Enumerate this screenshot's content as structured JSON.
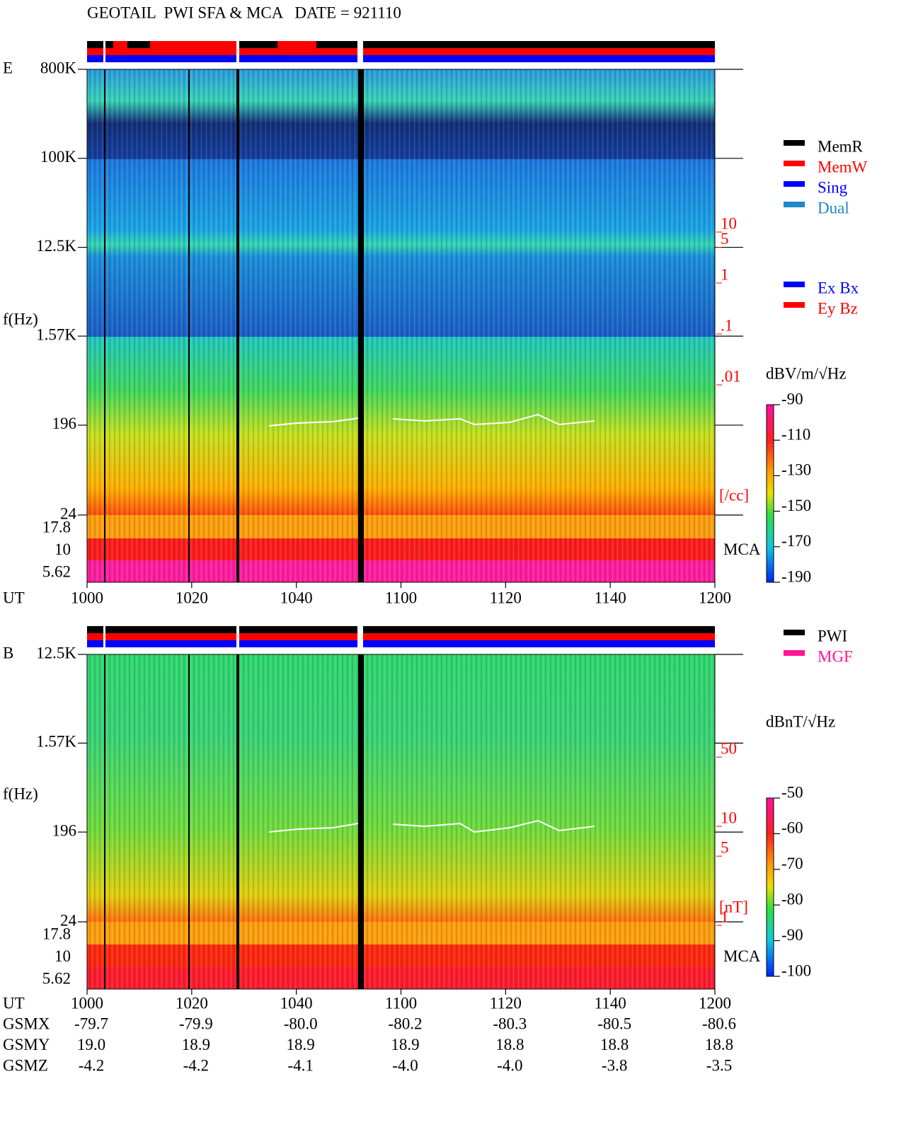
{
  "chart_data": [
    {
      "type": "spectrogram",
      "title": "GEOTAIL  PWI SFA & MCA   DATE = 921110",
      "panel_label": "E",
      "y_label": "f(Hz)",
      "x_label": "UT",
      "categories": [
        "1000",
        "1020",
        "1040",
        "1100",
        "1120",
        "1140",
        "1200"
      ],
      "ylim": [
        24,
        800000
      ],
      "log_y": true,
      "yticks": [
        {
          "value": 800000,
          "label": "800K"
        },
        {
          "value": 100000,
          "label": "100K"
        },
        {
          "value": 12500,
          "label": "12.5K"
        },
        {
          "value": 1570,
          "label": "1.57K"
        },
        196,
        24
      ],
      "mca_label": "MCA",
      "mca_ticks": [
        17.8,
        10,
        5.62
      ],
      "density_ticks": [
        10,
        5,
        1,
        {
          "value": 0.1,
          "label": ".1"
        },
        {
          "value": 0.01,
          "label": ".01"
        }
      ],
      "density_unit": "[/cc]",
      "colorbar": {
        "label": "dBV/m/√Hz",
        "lim": [
          -190,
          -90
        ],
        "ticks": [
          -90,
          -110,
          -130,
          -150,
          -170,
          -190
        ]
      },
      "legends": [
        [
          {
            "name": "MemR",
            "color": "#000000"
          },
          {
            "name": "MemW",
            "color": "#ff0000"
          },
          {
            "name": "Sing",
            "color": "#0000ff"
          },
          {
            "name": "Dual",
            "color": "#1e88c8"
          }
        ],
        [
          {
            "name": "Ex Bx",
            "color": "#0000ff"
          },
          {
            "name": "Ey Bz",
            "color": "#ff0000"
          }
        ]
      ]
    },
    {
      "type": "spectrogram",
      "panel_label": "B",
      "y_label": "f(Hz)",
      "x_label": "UT",
      "categories": [
        "1000",
        "1020",
        "1040",
        "1100",
        "1120",
        "1140",
        "1200"
      ],
      "ylim": [
        24,
        12500
      ],
      "log_y": true,
      "yticks": [
        {
          "value": 12500,
          "label": "12.5K"
        },
        {
          "value": 1570,
          "label": "1.57K"
        },
        196,
        24
      ],
      "mca_label": "MCA",
      "mca_ticks": [
        17.8,
        10,
        5.62
      ],
      "density_ticks": [
        50,
        10,
        5,
        1
      ],
      "density_unit": "[nT]",
      "colorbar": {
        "label": "dBnT/√Hz",
        "lim": [
          -100,
          -50
        ],
        "ticks": [
          -50,
          -60,
          -70,
          -80,
          -90,
          -100
        ]
      },
      "legends": [
        [
          {
            "name": "PWI",
            "color": "#000000"
          },
          {
            "name": "MGF",
            "color": "#ff1493"
          }
        ]
      ]
    }
  ],
  "orbit": {
    "rows": [
      {
        "label": "GSMX",
        "values": [
          "-79.7",
          "-79.9",
          "-80.0",
          "-80.2",
          "-80.3",
          "-80.5",
          "-80.6"
        ]
      },
      {
        "label": "GSMY",
        "values": [
          "19.0",
          "18.9",
          "18.9",
          "18.9",
          "18.8",
          "18.8",
          "18.8"
        ]
      },
      {
        "label": "GSMZ",
        "values": [
          "-4.2",
          "-4.2",
          "-4.1",
          "-4.0",
          "-4.0",
          "-3.8",
          "-3.5"
        ]
      }
    ]
  }
}
